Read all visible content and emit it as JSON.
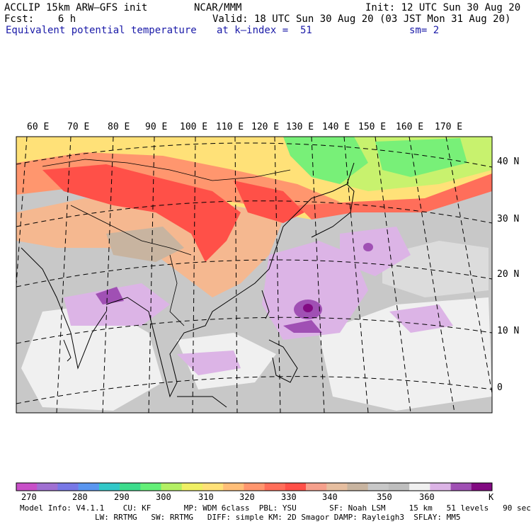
{
  "header": {
    "model": "ACCLIP 15km ARW–GFS init",
    "center": "NCAR/MMM",
    "init": "Init: 12 UTC Sun 30 Aug 20",
    "fcst": "Fcst:    6 h",
    "valid": "Valid: 18 UTC Sun 30 Aug 20 (03 JST Mon 31 Aug 20)",
    "field": "Equivalent potential temperature",
    "level": "at k–index =  51",
    "smoothing": "sm= 2"
  },
  "map": {
    "lon_labels": [
      "60 E",
      "70 E",
      "80 E",
      "90 E",
      "100 E",
      "110 E",
      "120 E",
      "130 E",
      "140 E",
      "150 E",
      "160 E",
      "170 E"
    ],
    "lat_labels": [
      "40 N",
      "30 N",
      "20 N",
      "10 N",
      "0"
    ],
    "palette": {
      "hot": "#ff5a48",
      "orange": "#ff9a70",
      "peach": "#f5b890",
      "yellow": "#fff176",
      "lightgreen": "#c8f26e",
      "green": "#78f078",
      "gray": "#c8c8c8",
      "lightgray": "#dcdcdc",
      "white": "#f0f0f0",
      "lilac": "#dcb4e6",
      "purple": "#a050b4",
      "darkpurple": "#821e82"
    }
  },
  "colorbar": {
    "colors": [
      "#c850c8",
      "#a070d2",
      "#7878e6",
      "#5a96f0",
      "#32c8c8",
      "#3cdc8c",
      "#64f078",
      "#b4f064",
      "#f0f064",
      "#ffe178",
      "#ffbe78",
      "#ff966e",
      "#ff6e5a",
      "#ff5048",
      "#f5a08c",
      "#e6bea0",
      "#c8b4a0",
      "#c8c8c8",
      "#bebebe",
      "#f0f0f0",
      "#dcb4e6",
      "#a050b4",
      "#820a82"
    ],
    "labels": [
      "270",
      "280",
      "290",
      "300",
      "310",
      "320",
      "330",
      "340",
      "350",
      "360"
    ],
    "unit": "K"
  },
  "footer": {
    "line1": "Model Info: V4.1.1    CU: KF       MP: WDM 6class  PBL: YSU       SF: Noah LSM     15 km   51 levels   90 sec",
    "line2": "                LW: RRTMG   SW: RRTMG   DIFF: simple KM: 2D Smagor DAMP: Rayleigh3  SFLAY: MM5"
  }
}
